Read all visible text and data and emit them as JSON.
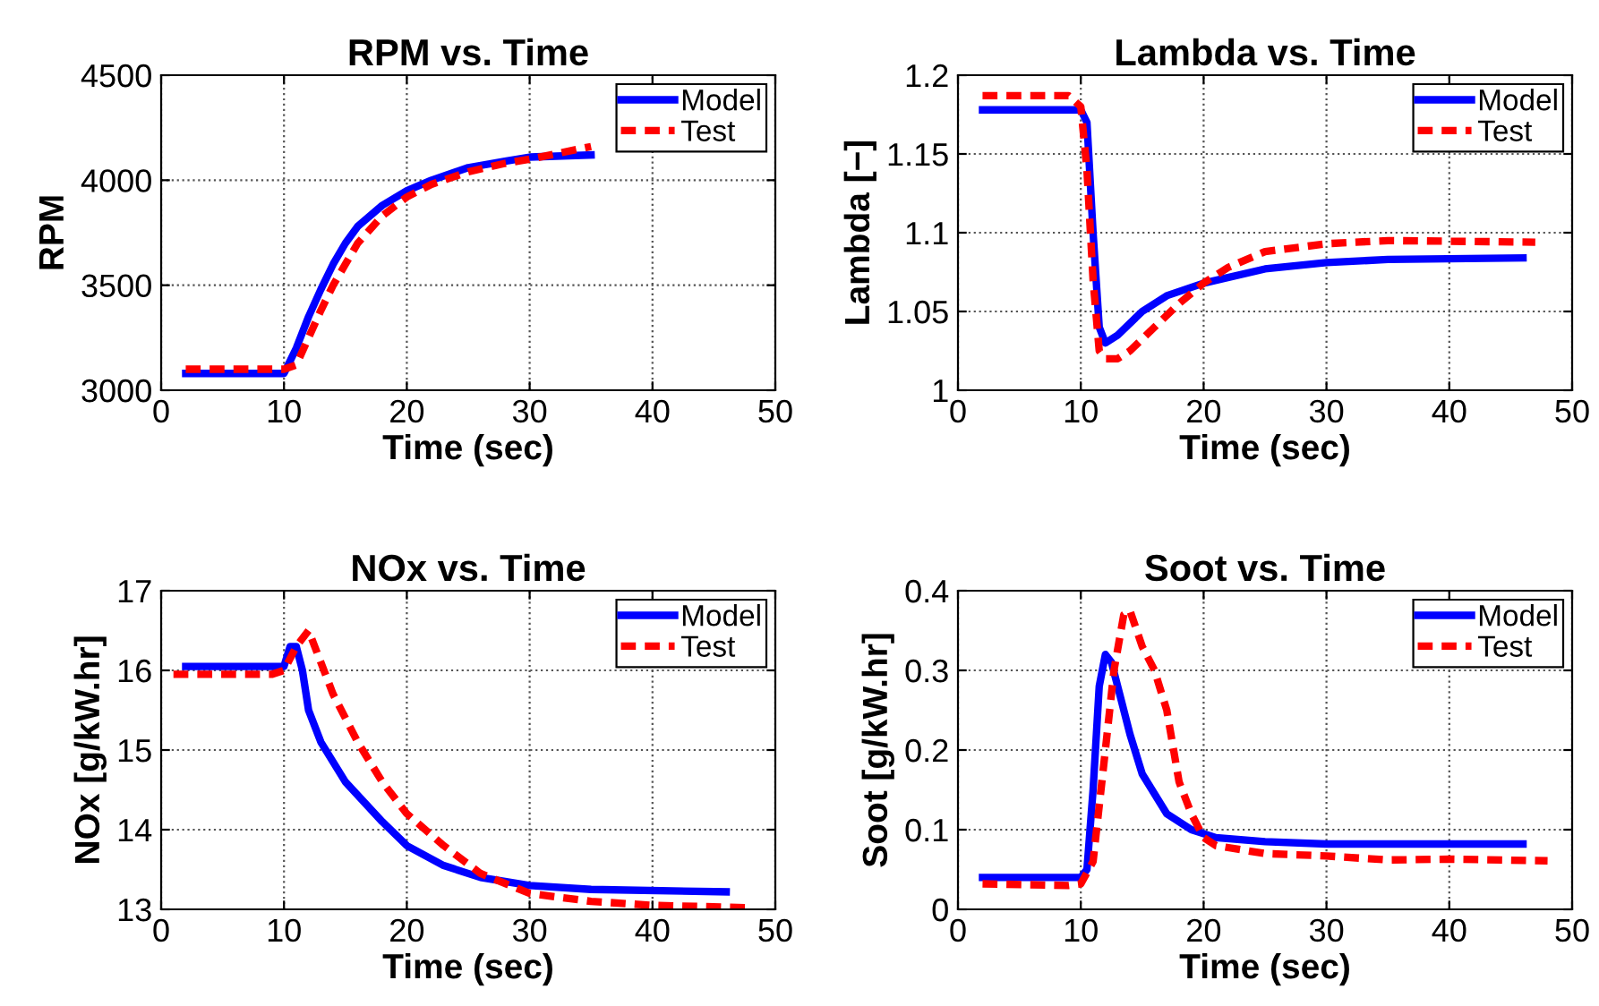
{
  "chart_data": [
    {
      "type": "line",
      "title": "RPM vs. Time",
      "xlabel": "Time (sec)",
      "ylabel": "RPM",
      "xlim": [
        0,
        50
      ],
      "xticks": [
        0,
        10,
        20,
        30,
        40,
        50
      ],
      "ylim": [
        3000,
        4500
      ],
      "yticks": [
        3000,
        3500,
        4000,
        4500
      ],
      "grid": true,
      "legend": "top right",
      "series": [
        {
          "name": "Model",
          "color": "#0000ff",
          "line_style": "solid",
          "x": [
            2,
            10,
            11,
            12,
            13,
            14,
            15,
            16,
            18,
            20,
            22,
            25,
            28,
            30,
            35
          ],
          "values": [
            3080,
            3080,
            3200,
            3350,
            3480,
            3600,
            3700,
            3780,
            3880,
            3950,
            4000,
            4060,
            4090,
            4110,
            4120
          ]
        },
        {
          "name": "Test",
          "color": "#ff0000",
          "line_style": "dashed",
          "x": [
            2,
            10,
            11,
            12,
            13,
            14,
            15,
            16,
            18,
            20,
            22,
            25,
            28,
            30,
            35
          ],
          "values": [
            3100,
            3100,
            3120,
            3250,
            3380,
            3500,
            3600,
            3700,
            3830,
            3920,
            3980,
            4040,
            4080,
            4100,
            4160
          ]
        }
      ]
    },
    {
      "type": "line",
      "title": "Lambda vs. Time",
      "xlabel": "Time (sec)",
      "ylabel": "Lambda [−]",
      "xlim": [
        0,
        50
      ],
      "xticks": [
        0,
        10,
        20,
        30,
        40,
        50
      ],
      "ylim": [
        1,
        1.2
      ],
      "yticks": [
        1,
        1.05,
        1.1,
        1.15,
        1.2
      ],
      "grid": true,
      "legend": "top right",
      "series": [
        {
          "name": "Model",
          "color": "#0000ff",
          "line_style": "solid",
          "x": [
            2,
            10,
            10.5,
            11,
            11.5,
            12,
            13,
            15,
            17,
            20,
            25,
            30,
            35,
            46
          ],
          "values": [
            1.178,
            1.178,
            1.17,
            1.1,
            1.04,
            1.03,
            1.035,
            1.05,
            1.06,
            1.068,
            1.077,
            1.081,
            1.083,
            1.084
          ]
        },
        {
          "name": "Test",
          "color": "#ff0000",
          "line_style": "dashed",
          "x": [
            2,
            9,
            10,
            10.5,
            11,
            11.5,
            12,
            13,
            14,
            16,
            18,
            20,
            22,
            25,
            30,
            35,
            47
          ],
          "values": [
            1.187,
            1.187,
            1.18,
            1.14,
            1.07,
            1.025,
            1.02,
            1.02,
            1.025,
            1.04,
            1.055,
            1.068,
            1.078,
            1.088,
            1.093,
            1.095,
            1.094
          ]
        }
      ]
    },
    {
      "type": "line",
      "title": "NOx vs. Time",
      "xlabel": "Time (sec)",
      "ylabel": "NOx [g/kW.hr]",
      "xlim": [
        0,
        50
      ],
      "xticks": [
        0,
        10,
        20,
        30,
        40,
        50
      ],
      "ylim": [
        13,
        17
      ],
      "yticks": [
        13,
        14,
        15,
        16,
        17
      ],
      "grid": true,
      "legend": "top right",
      "series": [
        {
          "name": "Model",
          "color": "#0000ff",
          "line_style": "solid",
          "x": [
            2,
            10,
            10.5,
            11,
            11.5,
            12,
            13,
            15,
            18,
            20,
            23,
            26,
            30,
            35,
            46
          ],
          "values": [
            16.05,
            16.05,
            16.3,
            16.3,
            16.0,
            15.5,
            15.1,
            14.6,
            14.1,
            13.8,
            13.55,
            13.4,
            13.3,
            13.25,
            13.22
          ]
        },
        {
          "name": "Test",
          "color": "#ff0000",
          "line_style": "dashed",
          "x": [
            1,
            9,
            10,
            11,
            12,
            13,
            14,
            16,
            18,
            20,
            23,
            26,
            30,
            35,
            40,
            48
          ],
          "values": [
            15.95,
            15.95,
            16.0,
            16.3,
            16.5,
            16.1,
            15.7,
            15.1,
            14.6,
            14.2,
            13.8,
            13.45,
            13.2,
            13.1,
            13.05,
            13.02
          ]
        }
      ]
    },
    {
      "type": "line",
      "title": "Soot vs. Time",
      "xlabel": "Time (sec)",
      "ylabel": "Soot [g/kW.hr]",
      "xlim": [
        0,
        50
      ],
      "xticks": [
        0,
        10,
        20,
        30,
        40,
        50
      ],
      "ylim": [
        0,
        0.4
      ],
      "yticks": [
        0,
        0.1,
        0.2,
        0.3,
        0.4
      ],
      "grid": true,
      "legend": "top right",
      "series": [
        {
          "name": "Model",
          "color": "#0000ff",
          "line_style": "solid",
          "x": [
            2,
            10,
            10.5,
            11,
            11.5,
            12,
            12.5,
            13,
            14,
            15,
            17,
            19,
            21,
            25,
            30,
            46
          ],
          "values": [
            0.04,
            0.04,
            0.05,
            0.15,
            0.28,
            0.32,
            0.31,
            0.28,
            0.22,
            0.17,
            0.12,
            0.1,
            0.09,
            0.085,
            0.082,
            0.082
          ]
        },
        {
          "name": "Test",
          "color": "#ff0000",
          "line_style": "dashed",
          "x": [
            2,
            9,
            10,
            11,
            12,
            12.7,
            13.5,
            14,
            15,
            16,
            17,
            18,
            19,
            20,
            21,
            25,
            30,
            35,
            40,
            48
          ],
          "values": [
            0.032,
            0.03,
            0.032,
            0.06,
            0.2,
            0.3,
            0.37,
            0.375,
            0.33,
            0.3,
            0.25,
            0.16,
            0.12,
            0.09,
            0.08,
            0.07,
            0.067,
            0.062,
            0.063,
            0.061
          ]
        }
      ]
    }
  ]
}
